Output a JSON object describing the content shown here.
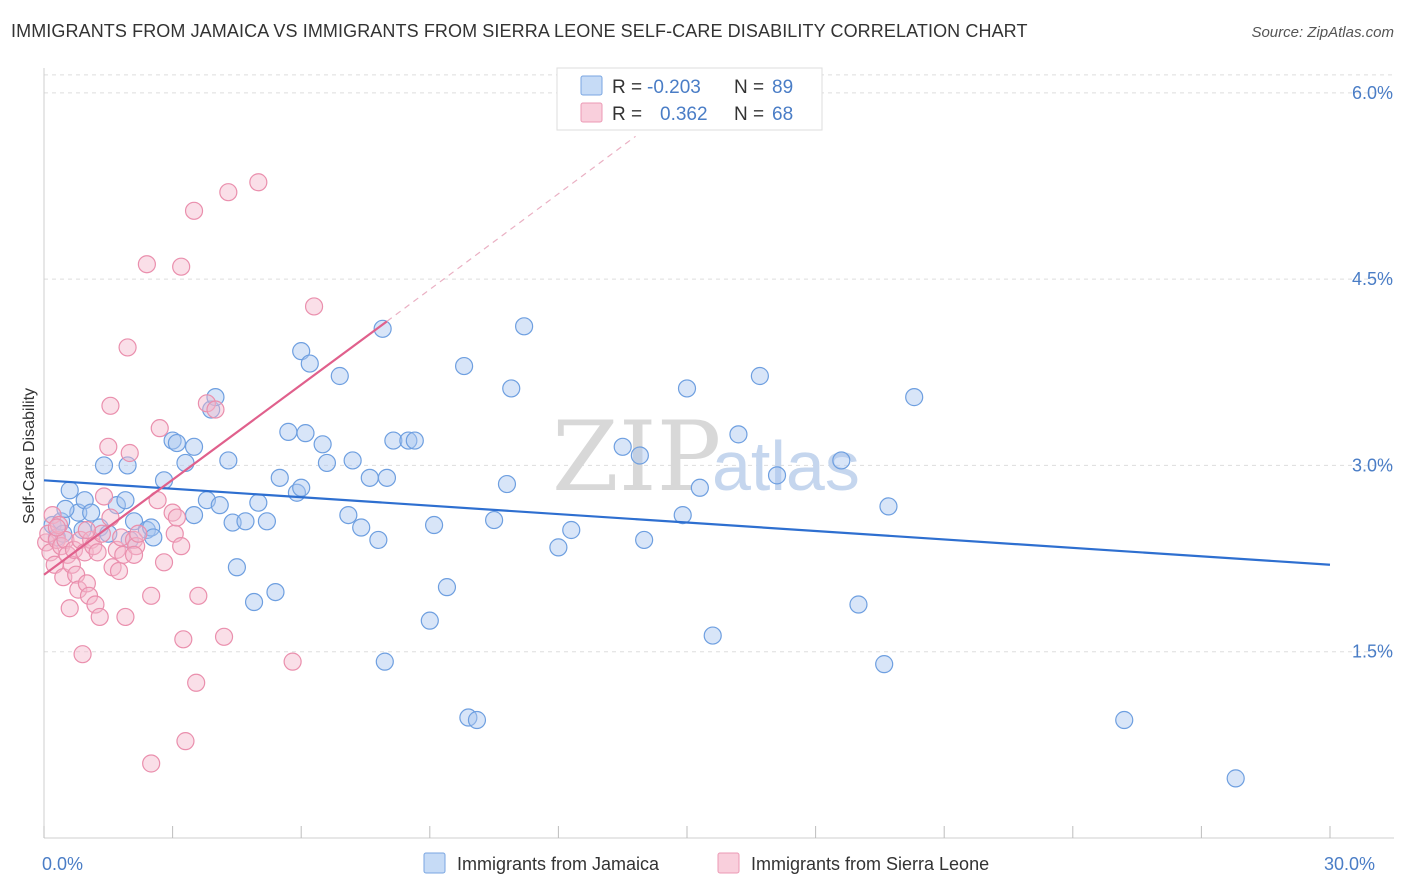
{
  "title": "IMMIGRANTS FROM JAMAICA VS IMMIGRANTS FROM SIERRA LEONE SELF-CARE DISABILITY CORRELATION CHART",
  "source": "Source: ZipAtlas.com",
  "watermark": {
    "zip": "ZIP",
    "atlas": "atlas"
  },
  "colors": {
    "blue_fill": "#a9c6f0",
    "blue_stroke": "#6e9fe0",
    "blue_line": "#2e6fd0",
    "pink_fill": "#f5b9cc",
    "pink_stroke": "#ea8fad",
    "pink_line": "#e0608c",
    "axis_text": "#4a7dc6",
    "grid": "#dddddd"
  },
  "legend": {
    "rows": [
      {
        "r_label": "R =",
        "r_value": "-0.203",
        "n_label": "N =",
        "n_value": "89"
      },
      {
        "r_label": "R =",
        "r_value": "0.362",
        "n_label": "N =",
        "n_value": "68"
      }
    ]
  },
  "chart_data": {
    "type": "scatter",
    "title": "IMMIGRANTS FROM JAMAICA VS IMMIGRANTS FROM SIERRA LEONE SELF-CARE DISABILITY CORRELATION CHART",
    "xlabel": "",
    "ylabel": "Self-Care Disability",
    "xlim": [
      0,
      30
    ],
    "ylim": [
      0,
      6.2
    ],
    "x_tick_labels": [
      "0.0%",
      "30.0%"
    ],
    "y_ticks": [
      {
        "value": 1.5,
        "label": "1.5%"
      },
      {
        "value": 3.0,
        "label": "3.0%"
      },
      {
        "value": 4.5,
        "label": "4.5%"
      },
      {
        "value": 6.0,
        "label": "6.0%"
      }
    ],
    "series": [
      {
        "name": "Immigrants from Jamaica",
        "color": "#6e9fe0",
        "trend": {
          "x": [
            0.0,
            30.0
          ],
          "y": [
            2.88,
            2.2
          ]
        },
        "points": [
          [
            0.2,
            2.52
          ],
          [
            0.3,
            2.42
          ],
          [
            0.4,
            2.55
          ],
          [
            0.45,
            2.45
          ],
          [
            0.6,
            2.8
          ],
          [
            0.8,
            2.62
          ],
          [
            0.9,
            2.48
          ],
          [
            0.95,
            2.72
          ],
          [
            1.1,
            2.62
          ],
          [
            1.3,
            2.5
          ],
          [
            1.5,
            2.45
          ],
          [
            1.4,
            3.0
          ],
          [
            1.7,
            2.68
          ],
          [
            1.9,
            2.72
          ],
          [
            1.95,
            3.0
          ],
          [
            2.0,
            2.4
          ],
          [
            2.1,
            2.55
          ],
          [
            2.4,
            2.48
          ],
          [
            2.5,
            2.5
          ],
          [
            2.55,
            2.42
          ],
          [
            2.8,
            2.88
          ],
          [
            3.0,
            3.2
          ],
          [
            3.1,
            3.18
          ],
          [
            3.3,
            3.02
          ],
          [
            3.5,
            3.15
          ],
          [
            3.5,
            2.6
          ],
          [
            3.8,
            2.72
          ],
          [
            3.9,
            3.45
          ],
          [
            4.0,
            3.55
          ],
          [
            4.1,
            2.68
          ],
          [
            4.3,
            3.04
          ],
          [
            4.4,
            2.54
          ],
          [
            4.5,
            2.18
          ],
          [
            4.7,
            2.55
          ],
          [
            4.9,
            1.9
          ],
          [
            5.0,
            2.7
          ],
          [
            5.2,
            2.55
          ],
          [
            5.4,
            1.98
          ],
          [
            5.5,
            2.9
          ],
          [
            5.7,
            3.27
          ],
          [
            5.9,
            2.78
          ],
          [
            6.0,
            2.82
          ],
          [
            6.1,
            3.26
          ],
          [
            6.0,
            3.92
          ],
          [
            6.2,
            3.82
          ],
          [
            6.5,
            3.17
          ],
          [
            6.6,
            3.02
          ],
          [
            6.9,
            3.72
          ],
          [
            7.1,
            2.6
          ],
          [
            7.2,
            3.04
          ],
          [
            7.4,
            2.5
          ],
          [
            7.6,
            2.9
          ],
          [
            7.8,
            2.4
          ],
          [
            7.9,
            4.1
          ],
          [
            8.0,
            2.9
          ],
          [
            7.95,
            1.42
          ],
          [
            8.15,
            3.2
          ],
          [
            8.5,
            3.2
          ],
          [
            8.65,
            3.2
          ],
          [
            9.1,
            2.52
          ],
          [
            9.0,
            1.75
          ],
          [
            9.4,
            2.02
          ],
          [
            9.8,
            3.8
          ],
          [
            9.9,
            0.97
          ],
          [
            10.1,
            0.95
          ],
          [
            10.5,
            2.56
          ],
          [
            10.8,
            2.85
          ],
          [
            10.9,
            3.62
          ],
          [
            11.2,
            4.12
          ],
          [
            12.0,
            2.34
          ],
          [
            12.3,
            2.48
          ],
          [
            13.5,
            3.15
          ],
          [
            14.0,
            2.4
          ],
          [
            13.9,
            3.08
          ],
          [
            14.9,
            2.6
          ],
          [
            15.0,
            3.62
          ],
          [
            15.3,
            2.82
          ],
          [
            15.6,
            1.63
          ],
          [
            16.2,
            3.25
          ],
          [
            16.7,
            3.72
          ],
          [
            17.1,
            2.92
          ],
          [
            18.6,
            3.04
          ],
          [
            19.0,
            1.88
          ],
          [
            19.6,
            1.4
          ],
          [
            19.7,
            2.67
          ],
          [
            20.3,
            3.55
          ],
          [
            25.2,
            0.95
          ],
          [
            27.8,
            0.48
          ],
          [
            0.5,
            2.65
          ]
        ]
      },
      {
        "name": "Immigrants from Sierra Leone",
        "color": "#ea8fad",
        "trend": {
          "x": [
            0.0,
            8.0
          ],
          "y": [
            2.12,
            4.16
          ]
        },
        "trend_dashed": {
          "x": [
            8.0,
            13.8
          ],
          "y": [
            4.16,
            5.65
          ]
        },
        "points": [
          [
            0.05,
            2.38
          ],
          [
            0.1,
            2.45
          ],
          [
            0.15,
            2.3
          ],
          [
            0.2,
            2.6
          ],
          [
            0.25,
            2.2
          ],
          [
            0.3,
            2.4
          ],
          [
            0.35,
            2.52
          ],
          [
            0.4,
            2.35
          ],
          [
            0.45,
            2.1
          ],
          [
            0.5,
            2.4
          ],
          [
            0.55,
            2.28
          ],
          [
            0.6,
            1.85
          ],
          [
            0.65,
            2.2
          ],
          [
            0.7,
            2.32
          ],
          [
            0.75,
            2.12
          ],
          [
            0.8,
            2.0
          ],
          [
            0.85,
            2.4
          ],
          [
            0.9,
            1.48
          ],
          [
            0.95,
            2.3
          ],
          [
            1.0,
            2.05
          ],
          [
            1.05,
            1.95
          ],
          [
            1.1,
            2.4
          ],
          [
            1.15,
            2.35
          ],
          [
            1.2,
            1.88
          ],
          [
            1.25,
            2.3
          ],
          [
            1.3,
            1.78
          ],
          [
            1.35,
            2.45
          ],
          [
            1.4,
            2.75
          ],
          [
            1.5,
            3.15
          ],
          [
            1.55,
            3.48
          ],
          [
            1.6,
            2.18
          ],
          [
            1.7,
            2.32
          ],
          [
            1.75,
            2.15
          ],
          [
            1.8,
            2.42
          ],
          [
            1.85,
            2.28
          ],
          [
            1.9,
            1.78
          ],
          [
            1.95,
            3.95
          ],
          [
            2.0,
            3.1
          ],
          [
            2.1,
            2.4
          ],
          [
            2.15,
            2.35
          ],
          [
            2.2,
            2.45
          ],
          [
            2.4,
            4.62
          ],
          [
            2.5,
            1.95
          ],
          [
            2.5,
            0.6
          ],
          [
            2.65,
            2.72
          ],
          [
            2.7,
            3.3
          ],
          [
            2.8,
            2.22
          ],
          [
            3.0,
            2.62
          ],
          [
            3.05,
            2.45
          ],
          [
            3.2,
            4.6
          ],
          [
            3.25,
            1.6
          ],
          [
            3.3,
            0.78
          ],
          [
            3.1,
            2.58
          ],
          [
            3.2,
            2.35
          ],
          [
            3.5,
            5.05
          ],
          [
            3.6,
            1.95
          ],
          [
            3.55,
            1.25
          ],
          [
            3.8,
            3.5
          ],
          [
            4.0,
            3.45
          ],
          [
            4.2,
            1.62
          ],
          [
            4.3,
            5.2
          ],
          [
            5.0,
            5.28
          ],
          [
            5.8,
            1.42
          ],
          [
            6.3,
            4.28
          ],
          [
            1.0,
            2.48
          ],
          [
            0.3,
            2.5
          ],
          [
            1.55,
            2.58
          ],
          [
            2.1,
            2.28
          ]
        ]
      }
    ]
  },
  "bottom_legend": [
    {
      "label": "Immigrants from Jamaica"
    },
    {
      "label": "Immigrants from Sierra Leone"
    }
  ]
}
